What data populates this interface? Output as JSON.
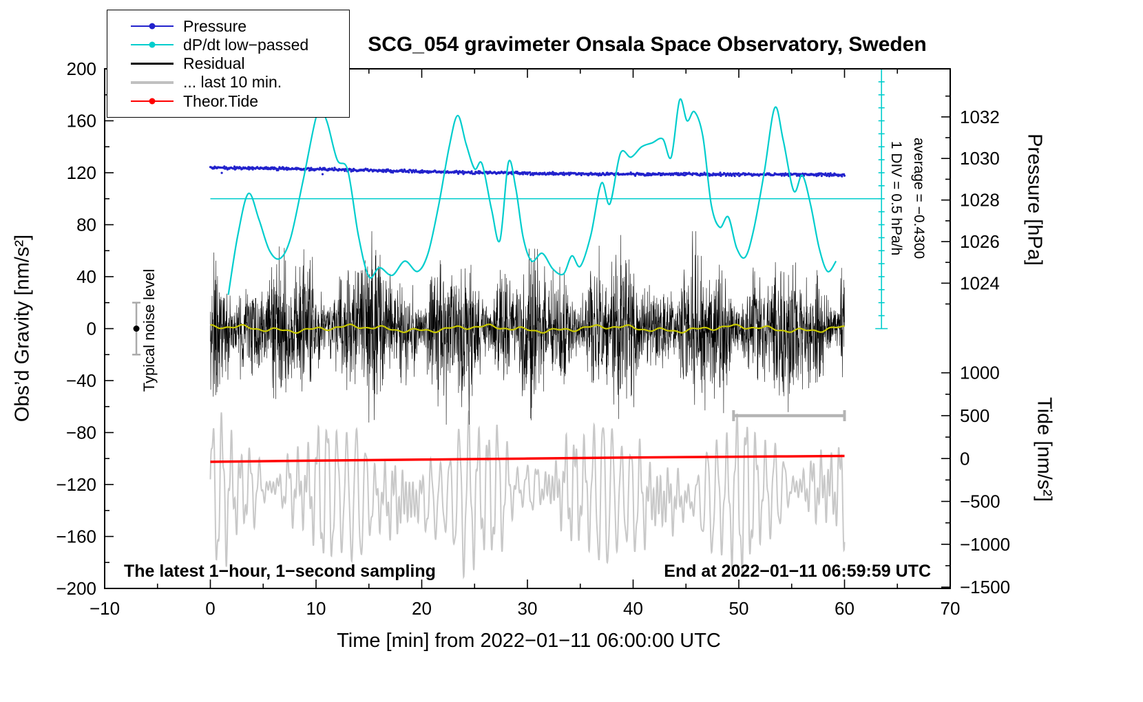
{
  "title": "SCG_054 gravimeter Onsala Space Observatory, Sweden",
  "legend": {
    "items": [
      {
        "label": "Pressure",
        "color": "#2222cc",
        "marker": "line-dot"
      },
      {
        "label": "dP/dt low−passed",
        "color": "#00cdcd",
        "marker": "line-dot"
      },
      {
        "label": "Residual",
        "color": "#000000",
        "marker": "line"
      },
      {
        "label": "... last 10 min.",
        "color": "#c0c0c0",
        "marker": "line"
      },
      {
        "label": "Theor.Tide",
        "color": "#ff0000",
        "marker": "line-dot"
      }
    ]
  },
  "annotations": {
    "div_scale": "1 DIV = 0.5 hPa/h",
    "average": "average = −0.4300",
    "noise_label": "Typical noise level",
    "sampling_note": "The latest 1−hour, 1−second sampling",
    "end_time": "End at 2022−01−11 06:59:59 UTC"
  },
  "chart_data": {
    "type": "line",
    "title": "SCG_054 gravimeter Onsala Space Observatory, Sweden",
    "xlabel": "Time [min] from 2022−01−11 06:00:00 UTC",
    "ylabel": "Obs’d Gravity [nm/s²]",
    "ylabel_right_top": "Pressure [hPa]",
    "ylabel_right_bottom": "Tide [nm/s²]",
    "xlim": [
      -10,
      70
    ],
    "ylim": [
      -200,
      200
    ],
    "x_ticks": [
      -10,
      0,
      10,
      20,
      30,
      40,
      50,
      60,
      70
    ],
    "y_ticks": [
      -200,
      -160,
      -120,
      -80,
      -40,
      0,
      40,
      80,
      120,
      160,
      200
    ],
    "pressure_ticks": [
      1024,
      1026,
      1028,
      1030,
      1032
    ],
    "tide_ticks": [
      -1500,
      -1000,
      -500,
      0,
      500,
      1000
    ],
    "grid": false,
    "legend_position": "top-left",
    "pressure_axis_map": {
      "gravity_at_1024_hPa": 35,
      "gravity_per_hPa": 16
    },
    "tide_axis_map": {
      "gravity_at_tide_0": -100,
      "gravity_per_500_tide": 33
    },
    "series": [
      {
        "name": "Pressure",
        "type": "dots",
        "color": "#2222cc",
        "dot_radius": 1.6,
        "x_start": 0,
        "x_end": 60,
        "x_step": 0.06,
        "seed": 77,
        "hPa_start": 1029.5,
        "hPa_end": 1029.15,
        "gravity_start": 123,
        "gravity_end": 117.6,
        "noise_sd": 1.1
      },
      {
        "name": "dP/dt low-passed",
        "type": "smooth",
        "color": "#00cdcd",
        "width": 2.2,
        "points": [
          [
            1.7,
            26
          ],
          [
            2.6,
            72
          ],
          [
            3.6,
            104
          ],
          [
            4.6,
            84
          ],
          [
            5.6,
            60
          ],
          [
            6.6,
            54
          ],
          [
            7.6,
            70
          ],
          [
            8.8,
            115
          ],
          [
            10.2,
            168
          ],
          [
            11.0,
            160
          ],
          [
            12.0,
            130
          ],
          [
            13.0,
            122
          ],
          [
            14.0,
            72
          ],
          [
            15.0,
            40
          ],
          [
            16.0,
            47
          ],
          [
            17.2,
            41
          ],
          [
            18.4,
            52
          ],
          [
            19.6,
            44
          ],
          [
            20.6,
            58
          ],
          [
            21.6,
            95
          ],
          [
            22.6,
            140
          ],
          [
            23.4,
            164
          ],
          [
            24.2,
            142
          ],
          [
            25.0,
            123
          ],
          [
            25.7,
            127
          ],
          [
            26.6,
            92
          ],
          [
            27.4,
            68
          ],
          [
            28.2,
            128
          ],
          [
            28.9,
            108
          ],
          [
            29.6,
            70
          ],
          [
            30.4,
            52
          ],
          [
            31.4,
            58
          ],
          [
            32.4,
            46
          ],
          [
            33.4,
            42
          ],
          [
            34.2,
            56
          ],
          [
            35.0,
            48
          ],
          [
            36.0,
            72
          ],
          [
            37.0,
            112
          ],
          [
            37.8,
            96
          ],
          [
            38.8,
            135
          ],
          [
            39.8,
            132
          ],
          [
            40.8,
            140
          ],
          [
            41.8,
            143
          ],
          [
            42.8,
            146
          ],
          [
            43.6,
            132
          ],
          [
            44.4,
            176
          ],
          [
            45.1,
            160
          ],
          [
            45.8,
            167
          ],
          [
            46.6,
            148
          ],
          [
            47.4,
            95
          ],
          [
            48.2,
            78
          ],
          [
            49.0,
            86
          ],
          [
            49.8,
            62
          ],
          [
            50.6,
            55
          ],
          [
            51.4,
            76
          ],
          [
            52.4,
            120
          ],
          [
            53.4,
            170
          ],
          [
            54.2,
            145
          ],
          [
            55.2,
            106
          ],
          [
            56.0,
            118
          ],
          [
            56.8,
            95
          ],
          [
            57.6,
            62
          ],
          [
            58.4,
            44
          ],
          [
            59.2,
            52
          ]
        ]
      },
      {
        "name": "Residual",
        "type": "noise",
        "color": "#000000",
        "width": 0.6,
        "x_start": 0,
        "x_end": 60,
        "x_step": 0.02,
        "seed": 1234,
        "mean": 0,
        "typ_amplitude": 40,
        "max_abs": 75
      },
      {
        "name": "Residual smoothed (yellow)",
        "type": "wave",
        "color": "#c8c800",
        "width": 2.2,
        "x_start": 0,
        "x_end": 60,
        "x_step": 0.1,
        "mean": 0,
        "amplitude": 2.5
      },
      {
        "name": "... last 10 min.",
        "type": "osc",
        "color": "#c8c8c8",
        "width": 2,
        "x_start": 0,
        "x_end": 60,
        "x_step": 0.02,
        "center": -127,
        "min": -193,
        "max": -60,
        "period_min": 0.9
      },
      {
        "name": "Theor.Tide",
        "type": "smooth",
        "color": "#ff0000",
        "width": 3.5,
        "points": [
          [
            0,
            -102.5
          ],
          [
            10,
            -101.6
          ],
          [
            20,
            -100.8
          ],
          [
            30,
            -100.0
          ],
          [
            40,
            -99.2
          ],
          [
            50,
            -98.6
          ],
          [
            60,
            -98.0
          ]
        ]
      }
    ],
    "reference_marks": {
      "pressure_ref_line": {
        "gravity": 100,
        "x_start": 0,
        "x_end": 63.8,
        "color": "#00cdcd"
      },
      "scale_bar": {
        "x": 63.5,
        "gravity_range": [
          0,
          200
        ],
        "divisions": 20,
        "color": "#00cdcd"
      },
      "last10_span_bar": {
        "x_range": [
          49.5,
          60
        ],
        "gravity": -67,
        "color": "#b4b4b4"
      },
      "noise_marker": {
        "x": -7,
        "gravity": 0,
        "half_range": 20,
        "dot_color": "#000000",
        "bar_color": "#aaaaaa"
      }
    }
  }
}
